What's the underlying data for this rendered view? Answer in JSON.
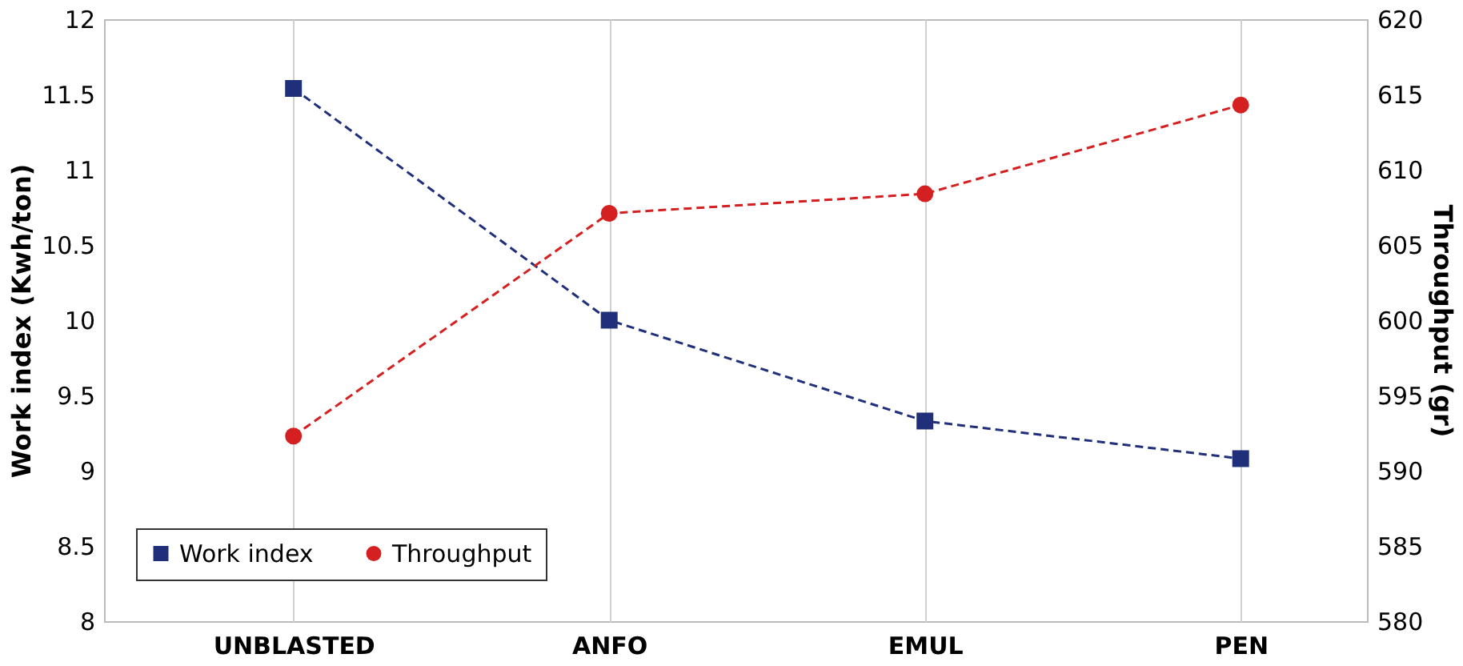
{
  "chart_data": {
    "type": "line",
    "categories": [
      "UNBLASTED",
      "ANFO",
      "EMUL",
      "PEN"
    ],
    "series": [
      {
        "name": "Work index",
        "color": "#1f2f7a",
        "values": [
          11.54,
          10.0,
          9.33,
          9.08
        ],
        "marker": "square",
        "line_style": "dashed"
      },
      {
        "name": "Throughput",
        "color": "#d42020",
        "values": [
          592.3,
          607.1,
          608.4,
          614.3
        ],
        "marker": "circle",
        "line_style": "dashed",
        "axis": "y2"
      }
    ],
    "ylabel": "Work index (Kwh/ton)",
    "y2label": "Throughput (gr)",
    "ylim": [
      8,
      12
    ],
    "yticks": [
      8,
      8.5,
      9,
      9.5,
      10,
      10.5,
      11,
      11.5,
      12
    ],
    "y2lim": [
      580,
      620
    ],
    "y2ticks": [
      580,
      585,
      590,
      595,
      600,
      605,
      610,
      615,
      620
    ],
    "grid": "x",
    "legend": "bottom left"
  }
}
